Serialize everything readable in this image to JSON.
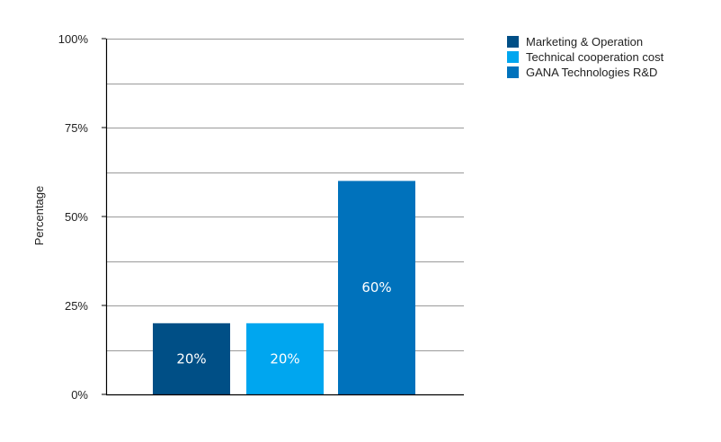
{
  "chart_data": {
    "type": "bar",
    "title": "",
    "xlabel": "",
    "ylabel": "Percentage",
    "ylim": [
      0,
      100
    ],
    "yticks": [
      {
        "value": 0,
        "label": "0%"
      },
      {
        "value": 25,
        "label": "25%"
      },
      {
        "value": 50,
        "label": "50%"
      },
      {
        "value": 75,
        "label": "75%"
      },
      {
        "value": 100,
        "label": "100%"
      }
    ],
    "minor_gridlines": [
      12.5,
      37.5,
      62.5,
      87.5
    ],
    "grid": true,
    "legend_position": "top-right",
    "categories": [
      "Marketing & Operation",
      "Technical cooperation cost",
      "GANA Technologies R&D"
    ],
    "values": [
      20,
      20,
      60
    ],
    "data_labels": [
      "20%",
      "20%",
      "60%"
    ],
    "colors": [
      "#004f86",
      "#00a6ef",
      "#0072bc"
    ]
  },
  "legend": {
    "items": [
      {
        "label": "Marketing & Operation",
        "color": "#004f86"
      },
      {
        "label": "Technical cooperation cost",
        "color": "#00a6ef"
      },
      {
        "label": "GANA Technologies R&D",
        "color": "#0072bc"
      }
    ]
  }
}
